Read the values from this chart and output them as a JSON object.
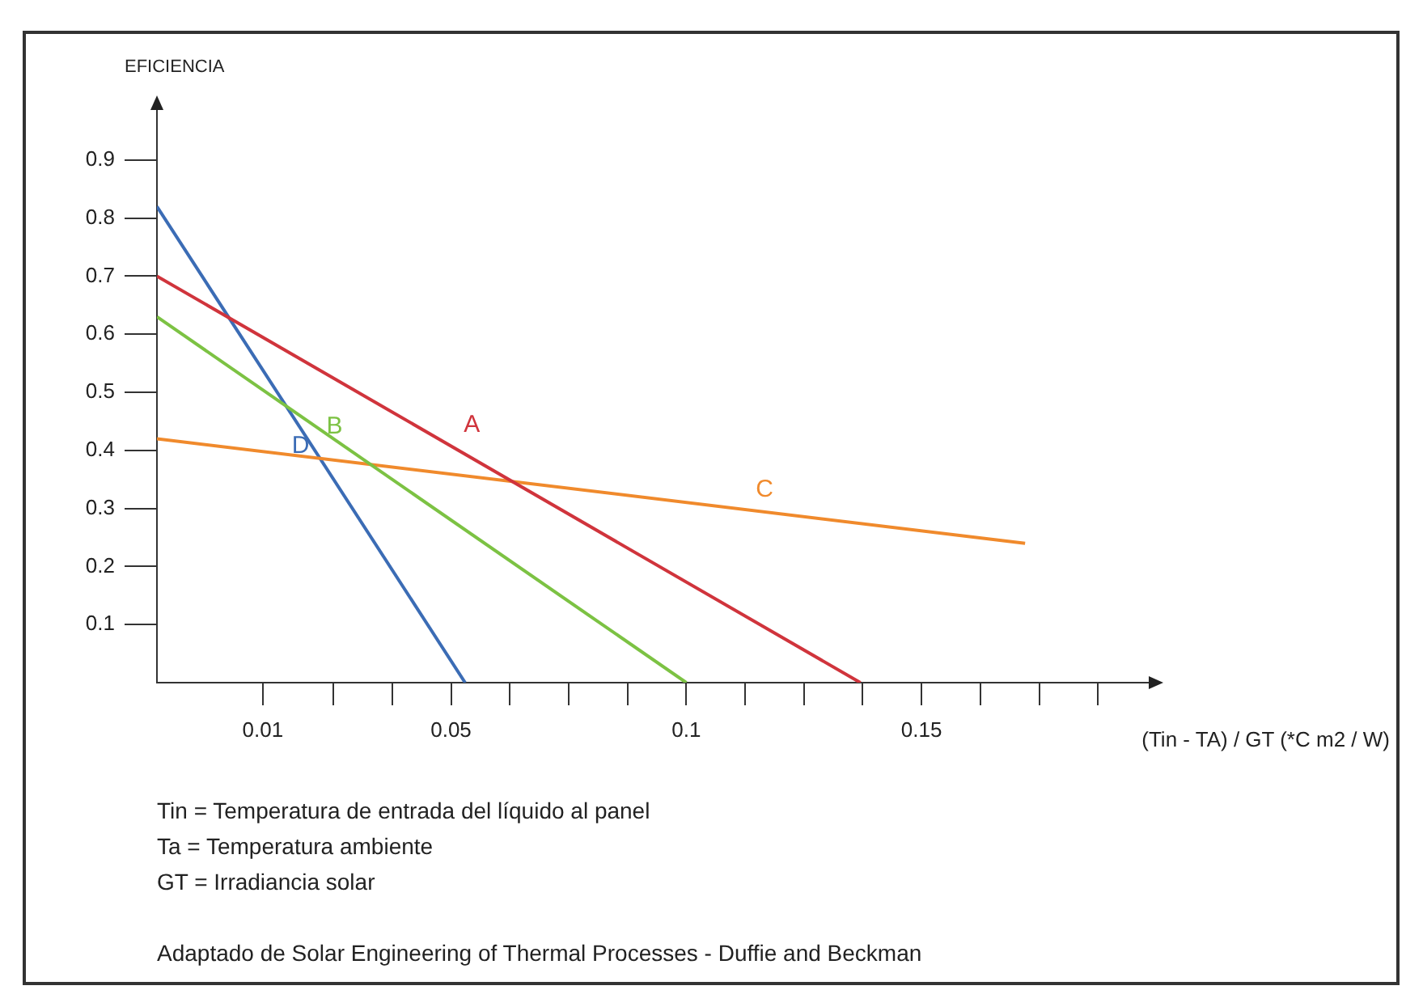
{
  "chart_data": {
    "type": "line",
    "ylabel": "EFICIENCIA",
    "xlabel": "(Tin - TA) / GT (*C m2 / W)",
    "xlim": [
      -0.0125,
      0.2
    ],
    "ylim": [
      0,
      1
    ],
    "xticks": [
      0.01,
      {
        "value": 0.025,
        "label": null
      },
      {
        "value": 0.0375,
        "label": null
      },
      0.05,
      {
        "value": 0.0625,
        "label": null
      },
      {
        "value": 0.075,
        "label": null
      },
      {
        "value": 0.0875,
        "label": null
      },
      0.1,
      {
        "value": 0.1125,
        "label": null
      },
      {
        "value": 0.125,
        "label": null
      },
      {
        "value": 0.1375,
        "label": null
      },
      0.15,
      {
        "value": 0.1625,
        "label": null
      },
      {
        "value": 0.175,
        "label": null
      },
      {
        "value": 0.1875,
        "label": null
      }
    ],
    "yticks": [
      0.1,
      0.2,
      0.3,
      0.4,
      0.5,
      0.6,
      0.7,
      0.8,
      0.9
    ],
    "series": [
      {
        "name": "A",
        "color": "#d0343c",
        "x": [
          -0.0125,
          0.137
        ],
        "values": [
          0.7,
          0
        ]
      },
      {
        "name": "B",
        "color": "#7cc243",
        "x": [
          -0.0125,
          0.1
        ],
        "values": [
          0.63,
          0
        ]
      },
      {
        "name": "C",
        "color": "#f08a2c",
        "x": [
          -0.0125,
          0.172
        ],
        "values": [
          0.42,
          0.24
        ]
      },
      {
        "name": "D",
        "color": "#3b6cb5",
        "x": [
          -0.0125,
          0.053
        ],
        "values": [
          0.82,
          0
        ]
      }
    ],
    "grid": false,
    "legend": false,
    "marker": "none",
    "line_style": "solid",
    "annotations": [
      "Tin = Temperatura de entrada del líquido al panel",
      "Ta = Temperatura ambiente",
      "GT = Irradiancia solar",
      "Adaptado de Solar Engineering of Thermal Processes - Duffie and Beckman"
    ]
  }
}
